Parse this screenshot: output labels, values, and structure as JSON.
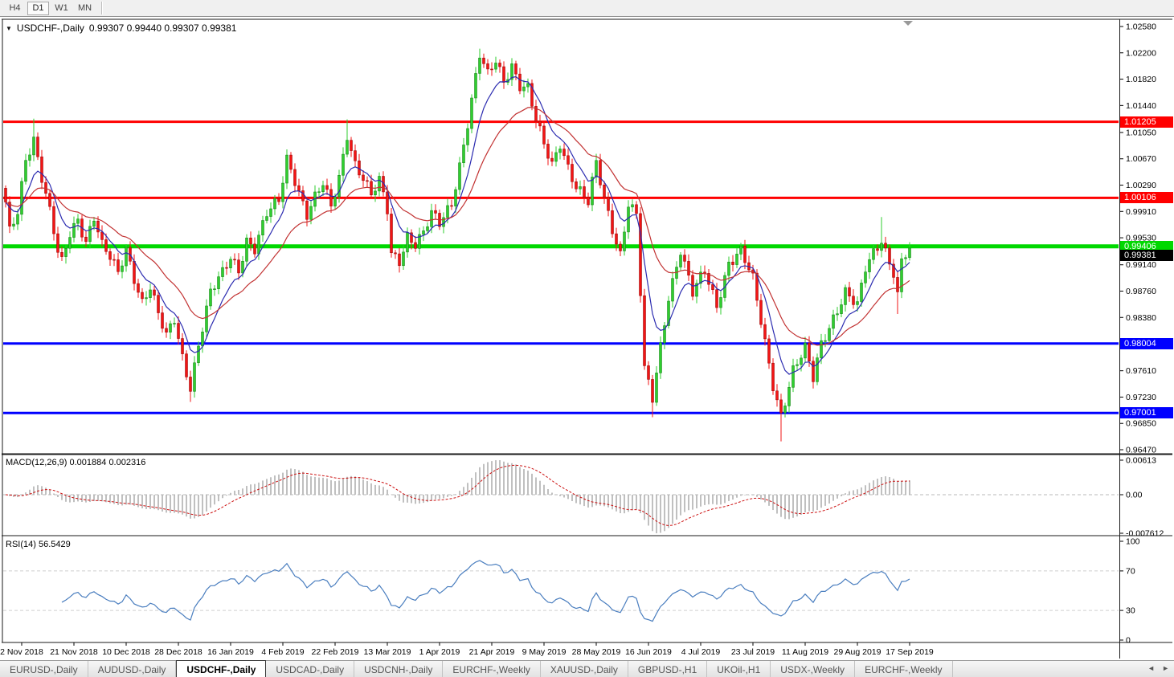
{
  "toolbar": {
    "buttons": [
      {
        "label": "H4",
        "active": false
      },
      {
        "label": "D1",
        "active": true
      },
      {
        "label": "W1",
        "active": false
      },
      {
        "label": "MN",
        "active": false
      }
    ]
  },
  "chart": {
    "title": "USDCHF-,Daily",
    "ohlc": "0.99307 0.99440 0.99307 0.99381",
    "dropdown_icon": "▼"
  },
  "chart_data": {
    "type": "candlestick",
    "symbol": "USDCHF",
    "timeframe": "Daily",
    "ohlc_current": {
      "open": "0.99307",
      "high": "0.99440",
      "low": "0.99307",
      "close": "0.99381"
    },
    "price_axis_ticks": [
      "1.02580",
      "1.02200",
      "1.01820",
      "1.01440",
      "1.01050",
      "1.00670",
      "1.00290",
      "0.99910",
      "0.99530",
      "0.99140",
      "0.98760",
      "0.98380",
      "0.97610",
      "0.97230",
      "0.96850",
      "0.96470"
    ],
    "price_range": {
      "top": "1.02580",
      "bottom": "0.96470"
    },
    "date_labels": [
      "2 Nov 2018",
      "21 Nov 2018",
      "10 Dec 2018",
      "28 Dec 2018",
      "16 Jan 2019",
      "4 Feb 2019",
      "22 Feb 2019",
      "13 Mar 2019",
      "1 Apr 2019",
      "21 Apr 2019",
      "9 May 2019",
      "28 May 2019",
      "16 Jun 2019",
      "4 Jul 2019",
      "23 Jul 2019",
      "11 Aug 2019",
      "29 Aug 2019",
      "17 Sep 2019"
    ],
    "levels": [
      {
        "price": "1.01205",
        "color": "#ff0000",
        "thickness": 3,
        "kind": "resistance"
      },
      {
        "price": "1.00106",
        "color": "#ff0000",
        "thickness": 3,
        "kind": "resistance"
      },
      {
        "price": "0.99406",
        "color": "#00d800",
        "thickness": 5,
        "kind": "pivot"
      },
      {
        "price": "0.98004",
        "color": "#0000ff",
        "thickness": 3,
        "kind": "support"
      },
      {
        "price": "0.97001",
        "color": "#0000ff",
        "thickness": 3,
        "kind": "support"
      }
    ],
    "current_price": {
      "value": "0.99381",
      "bg": "#000000",
      "fg": "#ffffff"
    },
    "candle_style": {
      "up_fill": "#2fce2f",
      "up_stroke": "#0e7a0e",
      "down_fill": "#f21414",
      "down_stroke": "#8e0000"
    },
    "moving_averages": [
      {
        "name": "fast-ma",
        "color": "#2b2bb0",
        "period": 8
      },
      {
        "name": "slow-ma",
        "color": "#c23232",
        "period": 22
      }
    ],
    "price_anchors": [
      [
        0,
        1.0
      ],
      [
        1,
        0.996
      ],
      [
        3,
        0.9992
      ],
      [
        5,
        1.007
      ],
      [
        7,
        1.0098
      ],
      [
        9,
        1.004
      ],
      [
        11,
        0.9988
      ],
      [
        13,
        0.993
      ],
      [
        14,
        0.9915
      ],
      [
        16,
        0.996
      ],
      [
        18,
        0.9982
      ],
      [
        20,
        0.995
      ],
      [
        22,
        0.9984
      ],
      [
        24,
        0.994
      ],
      [
        26,
        0.9922
      ],
      [
        28,
        0.99
      ],
      [
        30,
        0.9938
      ],
      [
        32,
        0.9898
      ],
      [
        34,
        0.9862
      ],
      [
        36,
        0.9882
      ],
      [
        38,
        0.984
      ],
      [
        40,
        0.9808
      ],
      [
        42,
        0.9835
      ],
      [
        44,
        0.9782
      ],
      [
        46,
        0.974
      ],
      [
        48,
        0.98
      ],
      [
        51,
        0.9872
      ],
      [
        54,
        0.99
      ],
      [
        56,
        0.9925
      ],
      [
        58,
        0.9908
      ],
      [
        60,
        0.9952
      ],
      [
        62,
        0.9938
      ],
      [
        65,
        0.9985
      ],
      [
        68,
        1.0005
      ],
      [
        70,
        1.0068
      ],
      [
        72,
        1.004
      ],
      [
        75,
        0.9988
      ],
      [
        77,
        1.001
      ],
      [
        79,
        1.0028
      ],
      [
        81,
        0.9995
      ],
      [
        83,
        1.004
      ],
      [
        85,
        1.0105
      ],
      [
        87,
        1.0062
      ],
      [
        89,
        1.004
      ],
      [
        91,
        1.0012
      ],
      [
        93,
        1.0032
      ],
      [
        95,
        0.9992
      ],
      [
        96,
        0.993
      ],
      [
        98,
        0.9922
      ],
      [
        100,
        0.9958
      ],
      [
        102,
        0.9945
      ],
      [
        104,
        0.9958
      ],
      [
        106,
        0.9985
      ],
      [
        108,
        0.9972
      ],
      [
        111,
        1.0005
      ],
      [
        113,
        1.006
      ],
      [
        115,
        1.012
      ],
      [
        118,
        1.0215
      ],
      [
        120,
        1.0185
      ],
      [
        122,
        1.0208
      ],
      [
        124,
        1.018
      ],
      [
        126,
        1.0205
      ],
      [
        128,
        1.0175
      ],
      [
        130,
        1.0168
      ],
      [
        132,
        1.012
      ],
      [
        134,
        1.0085
      ],
      [
        136,
        1.0058
      ],
      [
        138,
        1.0092
      ],
      [
        140,
        1.0058
      ],
      [
        142,
        1.0028
      ],
      [
        145,
        1.0002
      ],
      [
        147,
        1.0058
      ],
      [
        149,
        1.0008
      ],
      [
        151,
        0.9968
      ],
      [
        153,
        0.9932
      ],
      [
        155,
        1.0005
      ],
      [
        157,
        0.9985
      ],
      [
        159,
        0.976
      ],
      [
        161,
        0.9718
      ],
      [
        163,
        0.9795
      ],
      [
        165,
        0.987
      ],
      [
        168,
        0.9938
      ],
      [
        171,
        0.9872
      ],
      [
        174,
        0.9902
      ],
      [
        177,
        0.9855
      ],
      [
        180,
        0.992
      ],
      [
        183,
        0.9935
      ],
      [
        186,
        0.989
      ],
      [
        189,
        0.98
      ],
      [
        191,
        0.9742
      ],
      [
        193,
        0.97
      ],
      [
        196,
        0.9762
      ],
      [
        199,
        0.979
      ],
      [
        201,
        0.9748
      ],
      [
        203,
        0.98
      ],
      [
        206,
        0.984
      ],
      [
        209,
        0.9876
      ],
      [
        212,
        0.9852
      ],
      [
        214,
        0.9906
      ],
      [
        216,
        0.993
      ],
      [
        218,
        0.9952
      ],
      [
        219,
        0.9936
      ],
      [
        221,
        0.9906
      ],
      [
        222,
        0.9872
      ],
      [
        223,
        0.992
      ],
      [
        225,
        0.99381
      ]
    ],
    "wick_overrides": [
      {
        "i": 7,
        "h": 1.0125
      },
      {
        "i": 46,
        "l": 0.9716
      },
      {
        "i": 85,
        "h": 1.0124
      },
      {
        "i": 118,
        "h": 1.0226
      },
      {
        "i": 161,
        "l": 0.9694
      },
      {
        "i": 193,
        "l": 0.9659
      },
      {
        "i": 218,
        "h": 0.9983
      },
      {
        "i": 222,
        "l": 0.9843
      }
    ],
    "bar_count": 226,
    "macd": {
      "label": "MACD(12,26,9)",
      "value_main": "0.001884",
      "value_signal": "0.002316",
      "axis_ticks": [
        "0.00613",
        "0.00",
        "-0.007612"
      ],
      "fast": 12,
      "slow": 26,
      "signal": 9,
      "histogram_color": "#b0b0b0",
      "signal_color": "#cc1111"
    },
    "rsi": {
      "label": "RSI(14)",
      "value": "56.5429",
      "period": 14,
      "axis_ticks": [
        "100",
        "70",
        "30",
        "0"
      ],
      "guide_levels": [
        70,
        30
      ],
      "line_color": "#4a7ebf"
    }
  },
  "tabbar": {
    "items": [
      "EURUSD-,Daily",
      "AUDUSD-,Daily",
      "USDCHF-,Daily",
      "USDCAD-,Daily",
      "USDCNH-,Daily",
      "EURCHF-,Weekly",
      "XAUUSD-,Daily",
      "GBPUSD-,H1",
      "UKOil-,H1",
      "USDX-,Weekly",
      "EURCHF-,Weekly"
    ],
    "active_index": 2,
    "left_arrow": "◄",
    "right_arrow": "►"
  }
}
